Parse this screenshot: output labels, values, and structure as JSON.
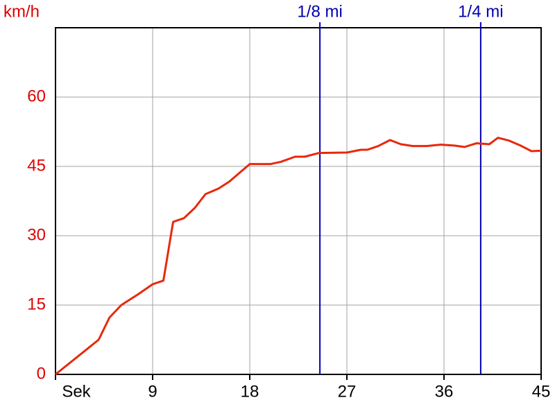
{
  "chart_data": {
    "type": "line",
    "y_label": "km/h",
    "x": [
      0,
      4.0,
      5.0,
      6.1,
      7.7,
      9,
      10,
      10.9,
      11.9,
      12.9,
      13.9,
      15.1,
      16.1,
      17,
      18,
      19.9,
      20.9,
      22.2,
      23.1,
      24.4,
      27,
      28.3,
      28.9,
      29.9,
      31,
      32,
      33.1,
      34.4,
      35.7,
      37,
      37.9,
      39,
      40.2,
      41,
      42,
      43.1,
      44.1,
      45
    ],
    "series": [
      {
        "color": "#e8280a",
        "values": [
          0,
          7.5,
          12.3,
          15,
          17.4,
          19.5,
          20.3,
          33,
          33.8,
          36,
          39,
          40.2,
          41.7,
          43.5,
          45.5,
          45.5,
          46,
          47.1,
          47.1,
          47.9,
          48,
          48.6,
          48.6,
          49.4,
          50.7,
          49.8,
          49.4,
          49.4,
          49.7,
          49.5,
          49.2,
          50,
          49.8,
          51.2,
          50.6,
          49.5,
          48.3,
          48.4
        ]
      }
    ],
    "xlim": [
      0,
      45
    ],
    "xticks": [
      {
        "value": 0,
        "label": "Sek"
      },
      9,
      18,
      27,
      36,
      45
    ],
    "ylim": [
      0,
      75
    ],
    "yticks": [
      0,
      15,
      30,
      45,
      60
    ],
    "grid": true,
    "markers": [
      {
        "label": "1/8 mi",
        "x": 24.5,
        "color": "#0000b0"
      },
      {
        "label": "1/4 mi",
        "x": 39.4,
        "color": "#0000b0"
      }
    ]
  }
}
